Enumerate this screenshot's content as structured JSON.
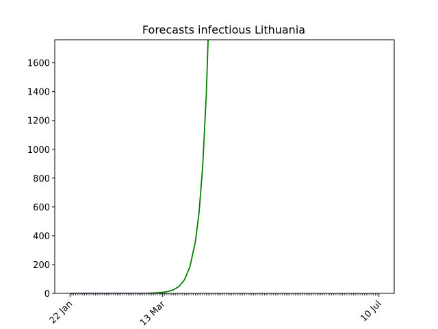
{
  "chart_data": {
    "type": "line",
    "title": "Forecasts infectious Lithuania",
    "xlabel": "",
    "ylabel": "",
    "x_axis": {
      "type": "date",
      "start": "2020-01-22",
      "end": "2020-07-10",
      "tick_labels": [
        {
          "date": "2020-01-22",
          "label": "22 Jan"
        },
        {
          "date": "2020-03-13",
          "label": "13 Mar"
        },
        {
          "date": "2020-07-10",
          "label": "10 Jul"
        }
      ],
      "minor_ticks": "daily"
    },
    "y_axis": {
      "ylim": [
        0,
        1760
      ],
      "ticks": [
        0,
        200,
        400,
        600,
        800,
        1000,
        1200,
        1400,
        1600
      ]
    },
    "grid": false,
    "series": [
      {
        "color": "#00008b",
        "points": [
          {
            "x": "2020-01-22",
            "y": 0
          },
          {
            "x": "2020-02-15",
            "y": 0
          },
          {
            "x": "2020-03-05",
            "y": 0
          },
          {
            "x": "2020-03-10",
            "y": 2
          },
          {
            "x": "2020-03-13",
            "y": 6
          }
        ]
      },
      {
        "color": "#008000",
        "points": [
          {
            "x": "2020-03-05",
            "y": 1
          },
          {
            "x": "2020-03-09",
            "y": 3
          },
          {
            "x": "2020-03-13",
            "y": 7
          },
          {
            "x": "2020-03-16",
            "y": 13
          },
          {
            "x": "2020-03-19",
            "y": 25
          },
          {
            "x": "2020-03-22",
            "y": 48
          },
          {
            "x": "2020-03-25",
            "y": 95
          },
          {
            "x": "2020-03-28",
            "y": 185
          },
          {
            "x": "2020-03-31",
            "y": 360
          },
          {
            "x": "2020-04-02",
            "y": 560
          },
          {
            "x": "2020-04-04",
            "y": 880
          },
          {
            "x": "2020-04-06",
            "y": 1380
          },
          {
            "x": "2020-04-07",
            "y": 1760
          }
        ]
      }
    ]
  }
}
